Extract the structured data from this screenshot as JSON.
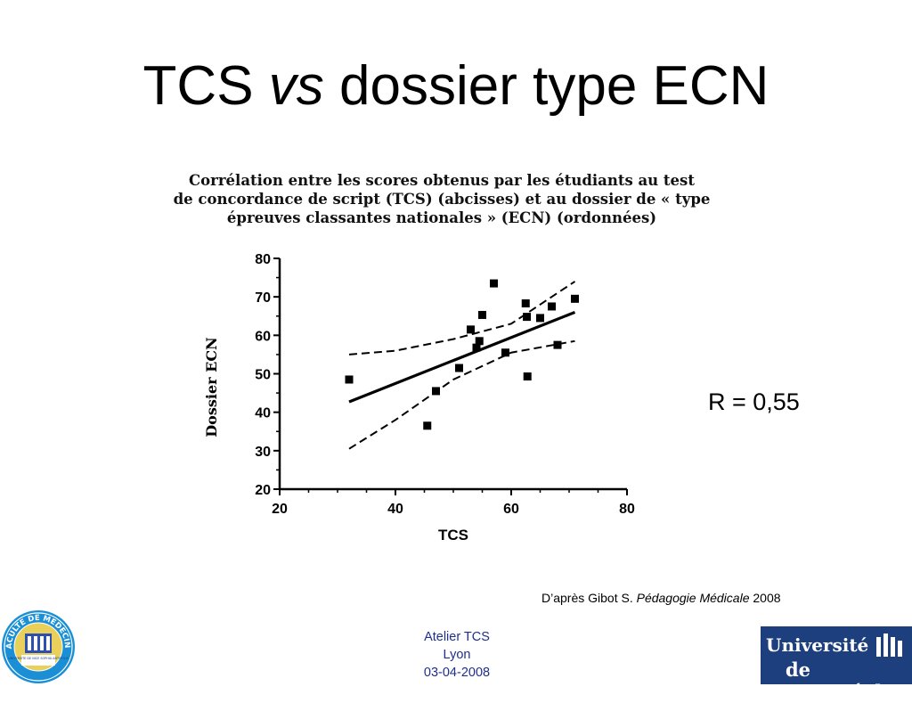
{
  "slide": {
    "title_a": "TCS",
    "title_vs": "vs",
    "title_b": "dossier type ECN",
    "r_value": "R = 0,55",
    "source_prefix": "D’après Gibot S.",
    "source_journal": "Pédagogie Médicale",
    "source_year": "2008",
    "footer": [
      "Atelier TCS",
      "Lyon",
      "03-04-2008"
    ],
    "logo_left_text": "FACULTE DE MEDECINE",
    "logo_left_sub": "UNIVERSITE DE NICE SOPHIA ANTIPOLIS",
    "logo_right_line1": "Université",
    "logo_right_line2": "de Montréal",
    "colors": {
      "footer_text": "#1f2f8c",
      "logo_right_bg": "#1d3f7e"
    }
  },
  "chart_data": {
    "type": "scatter",
    "title_lines": [
      "Corrélation entre les scores obtenus par les étudiants au test",
      "de concordance de script (TCS) (abcisses) et au dossier de « type",
      "épreuves classantes nationales » (ECN) (ordonnées)"
    ],
    "xlabel": "TCS",
    "ylabel": "Dossier ECN",
    "xlim": [
      20,
      80
    ],
    "ylim": [
      20,
      80
    ],
    "xticks": [
      20,
      40,
      60,
      80
    ],
    "yticks": [
      20,
      30,
      40,
      50,
      60,
      70,
      80
    ],
    "grid": false,
    "points": [
      {
        "x": 32,
        "y": 48.5
      },
      {
        "x": 45.5,
        "y": 36.5
      },
      {
        "x": 47,
        "y": 45.5
      },
      {
        "x": 51,
        "y": 51.5
      },
      {
        "x": 53,
        "y": 61.5
      },
      {
        "x": 54,
        "y": 56.8
      },
      {
        "x": 54.5,
        "y": 58.5
      },
      {
        "x": 55,
        "y": 65.3
      },
      {
        "x": 57,
        "y": 73.5
      },
      {
        "x": 59,
        "y": 55.5
      },
      {
        "x": 62.5,
        "y": 68.3
      },
      {
        "x": 62.7,
        "y": 64.8
      },
      {
        "x": 62.8,
        "y": 49.3
      },
      {
        "x": 65,
        "y": 64.5
      },
      {
        "x": 67,
        "y": 67.5
      },
      {
        "x": 68,
        "y": 57.5
      },
      {
        "x": 71,
        "y": 69.5
      }
    ],
    "regression": {
      "x": [
        32,
        71
      ],
      "y": [
        42.7,
        66
      ]
    },
    "ci_upper": {
      "x": [
        32,
        40,
        50,
        60,
        71
      ],
      "y": [
        55,
        56,
        59,
        63,
        74
      ]
    },
    "ci_lower": {
      "x": [
        32,
        40,
        50,
        60,
        71
      ],
      "y": [
        30.5,
        38,
        48.5,
        55.5,
        58.5
      ]
    }
  }
}
